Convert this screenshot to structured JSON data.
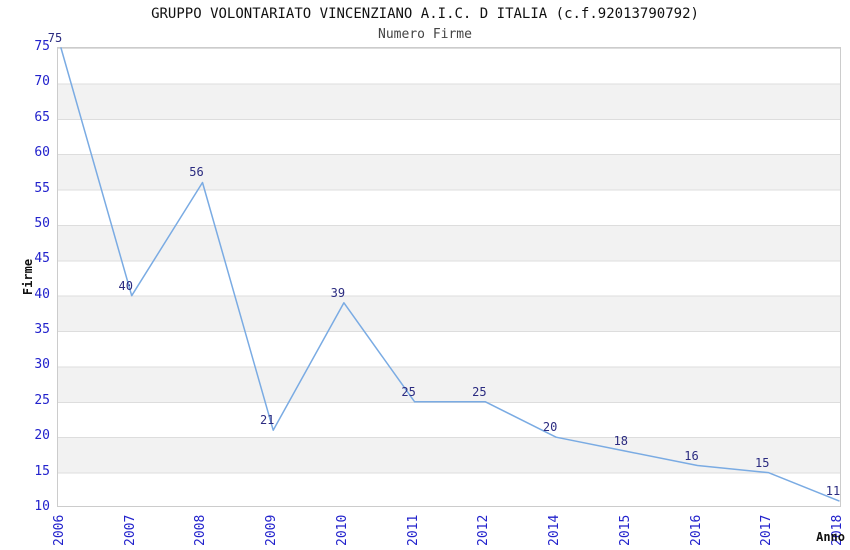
{
  "chart_data": {
    "type": "line",
    "title": "GRUPPO VOLONTARIATO VINCENZIANO A.I.C. D ITALIA (c.f.92013790792)",
    "subtitle": "Numero Firme",
    "xlabel": "Anno",
    "ylabel": "Firme",
    "x": [
      "2006",
      "2007",
      "2008",
      "2009",
      "2010",
      "2011",
      "2012",
      "2014",
      "2015",
      "2016",
      "2017",
      "2018"
    ],
    "values": [
      75,
      40,
      56,
      21,
      39,
      25,
      25,
      20,
      18,
      16,
      15,
      11
    ],
    "point_labels": [
      "75",
      "40",
      "56",
      "21",
      "39",
      "25",
      "25",
      "20",
      "18",
      "16",
      "15",
      "11"
    ],
    "yticks": [
      75,
      70,
      65,
      60,
      55,
      50,
      45,
      40,
      35,
      30,
      25,
      20,
      15,
      10
    ],
    "ylim": [
      10,
      75
    ],
    "grid": "horizontal-bands-every-5",
    "legend": "none",
    "marker": "none",
    "x_tick_rotation": -90,
    "colors": {
      "line": "#7aabe3",
      "tick_label": "#2222cc",
      "data_label": "#2b2b80",
      "band": "#f2f2f2",
      "grid_line": "#dddddd",
      "plot_border": "#cccccc",
      "title": "#111111",
      "subtitle": "#444444",
      "axis_title": "#111111"
    }
  }
}
